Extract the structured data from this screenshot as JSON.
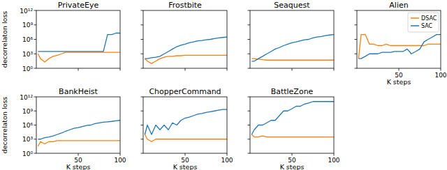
{
  "chart_data": [
    {
      "type": "line",
      "title": "PrivateEye",
      "log": "y",
      "tick_labels": "y",
      "y_label": "decorrelaton loss",
      "x": [
        2,
        5,
        10,
        15,
        20,
        25,
        30,
        35,
        40,
        45,
        50,
        55,
        60,
        65,
        70,
        75,
        80,
        85,
        90,
        95,
        100
      ],
      "xlim": [
        0,
        100
      ],
      "xticks": [
        50,
        100
      ],
      "ylim": [
        1,
        1000000000000.0
      ],
      "yticks": [
        {
          "value": 1,
          "label": "10⁰"
        },
        {
          "value": 1000.0,
          "label": "10³"
        },
        {
          "value": 1000000.0,
          "label": "10⁶"
        },
        {
          "value": 1000000000.0,
          "label": "10⁹"
        },
        {
          "value": 1000000000000.0,
          "label": "10¹²"
        }
      ],
      "series": [
        {
          "color": "#ff7f0e",
          "values": [
            1000.0,
            100.0,
            20.0,
            100.0,
            300.0,
            500.0,
            1000.0,
            2000.0,
            2000.0,
            2000.0,
            2000.0,
            2000.0,
            2000.0,
            2000.0,
            2000.0,
            2000.0,
            2000.0,
            2000.0,
            2000.0,
            2000.0,
            2000.0
          ]
        },
        {
          "color": "#1f77b4",
          "values": [
            3000.0,
            3000.0,
            3000.0,
            3000.0,
            3000.0,
            3000.0,
            3000.0,
            3000.0,
            3000.0,
            3000.0,
            3000.0,
            3000.0,
            3000.0,
            3000.0,
            3000.0,
            3000.0,
            3000.0,
            10000000.0,
            10000000.0,
            20000000.0,
            20000000.0
          ]
        }
      ]
    },
    {
      "type": "line",
      "title": "Frostbite",
      "log": "y",
      "tick_labels": false,
      "x": [
        2,
        5,
        10,
        15,
        20,
        25,
        30,
        35,
        40,
        45,
        50,
        55,
        60,
        65,
        70,
        75,
        80,
        85,
        90,
        95,
        100
      ],
      "xlim": [
        0,
        100
      ],
      "xticks": [
        50,
        100
      ],
      "ylim": [
        1,
        1000000000000.0
      ],
      "yticks": [
        {
          "value": 1,
          "label": "10⁰"
        },
        {
          "value": 1000.0,
          "label": "10³"
        },
        {
          "value": 1000000.0,
          "label": "10⁶"
        },
        {
          "value": 1000000000.0,
          "label": "10⁹"
        },
        {
          "value": 1000000000000.0,
          "label": "10¹²"
        }
      ],
      "series": [
        {
          "color": "#ff7f0e",
          "values": [
            100.0,
            30.0,
            10.0,
            30.0,
            100.0,
            200.0,
            300.0,
            300.0,
            400.0,
            400.0,
            500.0,
            500.0,
            500.0,
            500.0,
            500.0,
            500.0,
            500.0,
            500.0,
            500.0,
            500.0,
            500.0
          ]
        },
        {
          "color": "#1f77b4",
          "values": [
            100.0,
            100.0,
            150.0,
            200.0,
            300.0,
            1000.0,
            3000.0,
            10000.0,
            30000.0,
            60000.0,
            100000.0,
            200000.0,
            300000.0,
            500000.0,
            600000.0,
            800000.0,
            1000000.0,
            1500000.0,
            2000000.0,
            2500000.0,
            3000000.0
          ]
        }
      ]
    },
    {
      "type": "line",
      "title": "Seaquest",
      "log": "y",
      "tick_labels": false,
      "x": [
        2,
        5,
        10,
        15,
        20,
        25,
        30,
        35,
        40,
        45,
        50,
        55,
        60,
        65,
        70,
        75,
        80,
        85,
        90,
        95,
        100
      ],
      "xlim": [
        0,
        100
      ],
      "xticks": [
        50,
        100
      ],
      "ylim": [
        1,
        1000000000000.0
      ],
      "yticks": [
        {
          "value": 1,
          "label": "10⁰"
        },
        {
          "value": 1000.0,
          "label": "10³"
        },
        {
          "value": 1000000.0,
          "label": "10⁶"
        },
        {
          "value": 1000000000.0,
          "label": "10⁹"
        },
        {
          "value": 1000000000000.0,
          "label": "10¹²"
        }
      ],
      "series": [
        {
          "color": "#ff7f0e",
          "values": [
            100.0,
            100.0,
            80.0,
            60.0,
            50.0,
            50.0,
            50.0,
            50.0,
            50.0,
            50.0,
            50.0,
            50.0,
            50.0,
            50.0,
            50.0,
            50.0,
            50.0,
            50.0,
            50.0,
            50.0,
            50.0
          ]
        },
        {
          "color": "#1f77b4",
          "values": [
            30.0,
            30.0,
            100.0,
            300.0,
            1000.0,
            3000.0,
            10000.0,
            20000.0,
            50000.0,
            100000.0,
            200000.0,
            300000.0,
            500000.0,
            800000.0,
            1000000.0,
            2000000.0,
            3000000.0,
            4000000.0,
            6000000.0,
            8000000.0,
            10000000.0
          ]
        }
      ]
    },
    {
      "type": "line",
      "title": "Alien",
      "log": "y",
      "tick_labels": "x",
      "x_label": "K steps",
      "legend": "upper right",
      "x": [
        2,
        5,
        10,
        15,
        20,
        25,
        30,
        35,
        40,
        45,
        50,
        55,
        60,
        65,
        70,
        75,
        80,
        85,
        90,
        95,
        100
      ],
      "xlim": [
        0,
        100
      ],
      "xticks": [
        50,
        100
      ],
      "ylim": [
        1,
        1000000000000.0
      ],
      "yticks": [
        {
          "value": 1,
          "label": "10⁰"
        },
        {
          "value": 1000.0,
          "label": "10³"
        },
        {
          "value": 1000000.0,
          "label": "10⁶"
        },
        {
          "value": 1000000000.0,
          "label": "10⁹"
        },
        {
          "value": 1000000000000.0,
          "label": "10¹²"
        }
      ],
      "series": [
        {
          "name": "DSAC",
          "color": "#ff7f0e",
          "values": [
            100.0,
            10000000.0,
            10000000.0,
            100000.0,
            100000.0,
            50000.0,
            50000.0,
            100000.0,
            50000.0,
            50000.0,
            50000.0,
            50000.0,
            50000.0,
            50000.0,
            50000.0,
            50000.0,
            50000.0,
            100000.0,
            100000.0,
            100000.0,
            100000.0
          ]
        },
        {
          "name": "SAC",
          "color": "#1f77b4",
          "values": [
            100.0,
            100.0,
            300.0,
            1000.0,
            1000.0,
            1000.0,
            2000.0,
            2000.0,
            2000.0,
            3000.0,
            3000.0,
            3000.0,
            10000.0,
            1000.0,
            3000.0,
            10000.0,
            300000.0,
            1000000.0,
            3000000.0,
            10000000.0,
            10000000.0
          ]
        }
      ]
    },
    {
      "type": "line",
      "title": "BankHeist",
      "log": "y",
      "tick_labels": true,
      "x_label": "K steps",
      "y_label": "decorrelaton loss",
      "x": [
        2,
        5,
        10,
        15,
        20,
        25,
        30,
        35,
        40,
        45,
        50,
        55,
        60,
        65,
        70,
        75,
        80,
        85,
        90,
        95,
        100
      ],
      "xlim": [
        0,
        100
      ],
      "xticks": [
        50,
        100
      ],
      "ylim": [
        1,
        1000000000000.0
      ],
      "yticks": [
        {
          "value": 1,
          "label": "10⁰"
        },
        {
          "value": 1000.0,
          "label": "10³"
        },
        {
          "value": 1000000.0,
          "label": "10⁶"
        },
        {
          "value": 1000000000.0,
          "label": "10⁹"
        },
        {
          "value": 1000000000000.0,
          "label": "10¹²"
        }
      ],
      "series": [
        {
          "color": "#ff7f0e",
          "values": [
            30.0,
            300.0,
            100.0,
            300.0,
            300.0,
            500.0,
            500.0,
            500.0,
            500.0,
            500.0,
            500.0,
            500.0,
            500.0,
            500.0,
            500.0,
            500.0,
            500.0,
            500.0,
            500.0,
            500.0,
            500.0
          ]
        },
        {
          "color": "#1f77b4",
          "values": [
            1000.0,
            1000.0,
            2000.0,
            3000.0,
            5000.0,
            10000.0,
            20000.0,
            50000.0,
            100000.0,
            200000.0,
            300000.0,
            500000.0,
            800000.0,
            1000000.0,
            2000000.0,
            3000000.0,
            4000000.0,
            5000000.0,
            6000000.0,
            8000000.0,
            10000000.0
          ]
        }
      ]
    },
    {
      "type": "line",
      "title": "ChopperCommand",
      "log": "y",
      "tick_labels": "x",
      "x_label": "K steps",
      "x": [
        2,
        5,
        10,
        15,
        20,
        25,
        30,
        35,
        40,
        45,
        50,
        55,
        60,
        65,
        70,
        75,
        80,
        85,
        90,
        95,
        100
      ],
      "xlim": [
        0,
        100
      ],
      "xticks": [
        50,
        100
      ],
      "ylim": [
        1,
        1000000000000.0
      ],
      "yticks": [
        {
          "value": 1,
          "label": "10⁰"
        },
        {
          "value": 1000.0,
          "label": "10³"
        },
        {
          "value": 1000000.0,
          "label": "10⁶"
        },
        {
          "value": 1000000000.0,
          "label": "10⁹"
        },
        {
          "value": 1000000000000.0,
          "label": "10¹²"
        }
      ],
      "series": [
        {
          "color": "#ff7f0e",
          "values": [
            10000.0,
            1000.0,
            300.0,
            1000.0,
            1000.0,
            1000.0,
            1000.0,
            1000.0,
            1000.0,
            1000.0,
            1000.0,
            1000.0,
            1000.0,
            1000.0,
            1000.0,
            1000.0,
            1000.0,
            1000.0,
            1000.0,
            1000.0,
            1000.0
          ]
        },
        {
          "color": "#1f77b4",
          "values": [
            10000.0,
            1000000.0,
            10000.0,
            1000000.0,
            100000.0,
            1000000.0,
            100000.0,
            3000000.0,
            1000000.0,
            10000000.0,
            30000000.0,
            50000000.0,
            100000000.0,
            200000000.0,
            300000000.0,
            500000000.0,
            700000000.0,
            1000000000.0,
            1500000000.0,
            2000000000.0,
            2000000000.0
          ]
        }
      ]
    },
    {
      "type": "line",
      "title": "BattleZone",
      "log": "y",
      "tick_labels": "x",
      "x_label": "K steps",
      "x": [
        2,
        5,
        10,
        15,
        20,
        25,
        30,
        35,
        40,
        45,
        50,
        55,
        60,
        65,
        70,
        75,
        80,
        85,
        90,
        95,
        100
      ],
      "xlim": [
        0,
        100
      ],
      "xticks": [
        50,
        100
      ],
      "ylim": [
        1,
        1000000000000.0
      ],
      "yticks": [
        {
          "value": 1,
          "label": "10⁰"
        },
        {
          "value": 1000.0,
          "label": "10³"
        },
        {
          "value": 1000000.0,
          "label": "10⁶"
        },
        {
          "value": 1000000000.0,
          "label": "10⁹"
        },
        {
          "value": 1000000000000.0,
          "label": "10¹²"
        }
      ],
      "series": [
        {
          "color": "#ff7f0e",
          "values": [
            10000.0,
            3000.0,
            3000.0,
            5000.0,
            3000.0,
            3000.0,
            3000.0,
            3000.0,
            3000.0,
            3000.0,
            3000.0,
            3000.0,
            3000.0,
            3000.0,
            3000.0,
            3000.0,
            3000.0,
            3000.0,
            3000.0,
            3000.0,
            3000.0
          ]
        },
        {
          "color": "#1f77b4",
          "values": [
            10000.0,
            100000.0,
            1000000.0,
            1000000.0,
            3000000.0,
            10000000.0,
            10000000.0,
            100000000.0,
            1000000000.0,
            1000000000.0,
            3000000000.0,
            10000000000.0,
            10000000000.0,
            30000000000.0,
            50000000000.0,
            100000000000.0,
            100000000000.0,
            100000000000.0,
            100000000000.0,
            100000000000.0,
            100000000000.0
          ]
        }
      ]
    }
  ]
}
